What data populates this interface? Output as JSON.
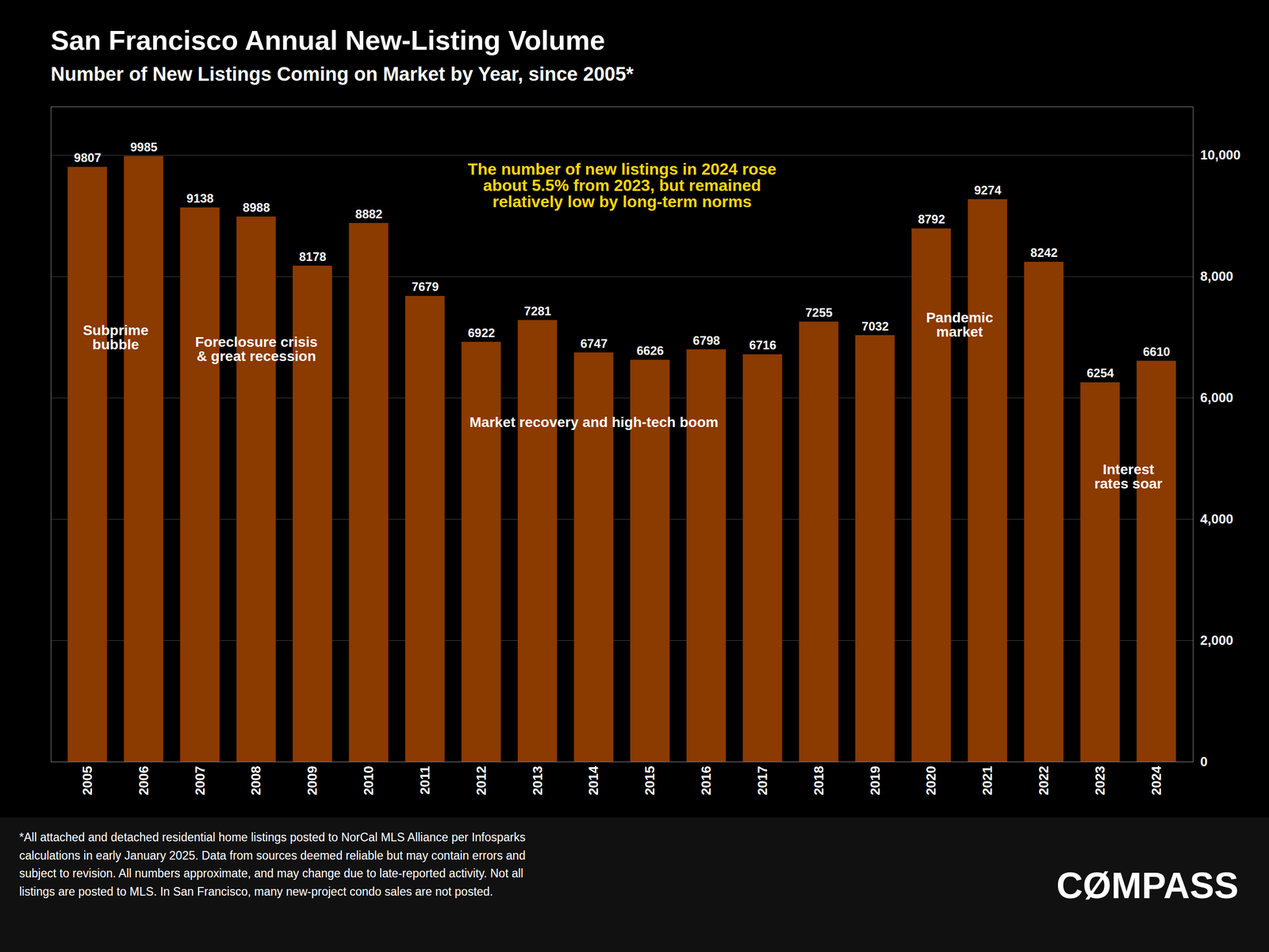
{
  "chart_data": {
    "type": "bar",
    "title": "San Francisco Annual New-Listing Volume",
    "subtitle": "Number of New Listings Coming on Market by Year, since 2005*",
    "categories": [
      "2005",
      "2006",
      "2007",
      "2008",
      "2009",
      "2010",
      "2011",
      "2012",
      "2013",
      "2014",
      "2015",
      "2016",
      "2017",
      "2018",
      "2019",
      "2020",
      "2021",
      "2022",
      "2023",
      "2024"
    ],
    "values": [
      9807,
      9985,
      9138,
      8988,
      8178,
      8882,
      7679,
      6922,
      7281,
      6747,
      6626,
      6798,
      6716,
      7255,
      7032,
      8792,
      9274,
      8242,
      6254,
      6610
    ],
    "color": "#8B3A00",
    "ylim": [
      0,
      10800
    ],
    "yticks": [
      0,
      {
        "value": 2000,
        "label": "2,000"
      },
      {
        "value": 4000,
        "label": "4,000"
      },
      {
        "value": 6000,
        "label": "6,000"
      },
      {
        "value": 8000,
        "label": "8,000"
      },
      {
        "value": 10000,
        "label": "10,000"
      }
    ],
    "grid": true,
    "data_labels": true,
    "annotations": [
      {
        "text": "Subprime\nbubble"
      },
      {
        "text": "Foreclosure crisis\n& great recession"
      },
      {
        "text": "Market recovery and high-tech boom"
      },
      {
        "text": "Pandemic\nmarket"
      },
      {
        "text": "Interest\nrates soar"
      },
      {
        "text": "The number of new listings in 2024 rose\nabout 5.5% from 2023, but remained\nrelatively low by long-term norms",
        "color": "#FFD700"
      }
    ],
    "caption": "*All attached and detached residential home listings posted to NorCal MLS Alliance per Infosparks\ncalculations in early January 2025. Data from sources deemed reliable but may contain errors and\nsubject to revision. All numbers approximate, and may change due to late-reported activity. Not all\nlistings are posted to MLS. In San Francisco, many new-project condo sales are not posted.",
    "credit": "CØMPASS"
  }
}
